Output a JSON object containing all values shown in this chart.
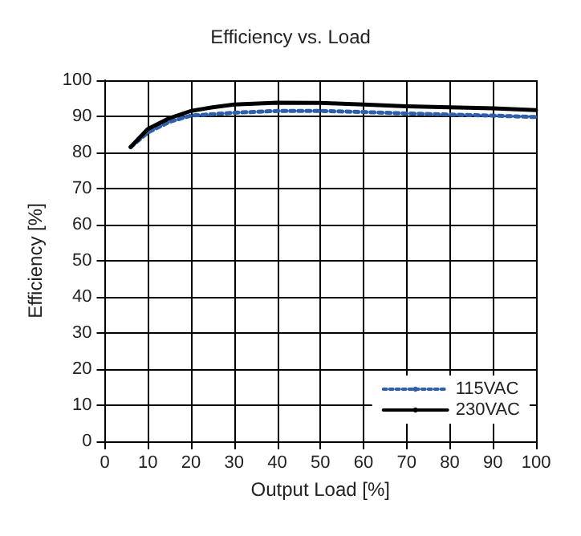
{
  "chart_data": {
    "type": "line",
    "title": "Efficiency vs. Load",
    "xlabel": "Output Load [%]",
    "ylabel": "Efficiency [%]",
    "xlim": [
      0,
      100
    ],
    "xticks": [
      0,
      10,
      20,
      30,
      40,
      50,
      60,
      70,
      80,
      90,
      100
    ],
    "ylim": [
      0,
      100
    ],
    "yticks": [
      0,
      10,
      20,
      30,
      40,
      50,
      60,
      70,
      80,
      90,
      100
    ],
    "grid": true,
    "legend": "bottom right",
    "marker": "none",
    "series": [
      {
        "name": "115VAC",
        "color": "#2e5fa8",
        "line_style": "dotted",
        "x": [
          6,
          10,
          15,
          20,
          30,
          40,
          50,
          60,
          70,
          80,
          90,
          100
        ],
        "values": [
          81.5,
          85.5,
          88.5,
          90.2,
          91,
          91.5,
          91.5,
          91.2,
          90.8,
          90.5,
          90.2,
          89.8
        ]
      },
      {
        "name": "230VAC",
        "color": "#000000",
        "line_style": "solid",
        "x": [
          6,
          10,
          15,
          20,
          25,
          30,
          40,
          50,
          60,
          70,
          80,
          90,
          100
        ],
        "values": [
          81.5,
          86.5,
          89.5,
          91.5,
          92.5,
          93.3,
          93.8,
          93.7,
          93.3,
          92.8,
          92.5,
          92.2,
          91.7
        ]
      }
    ]
  }
}
